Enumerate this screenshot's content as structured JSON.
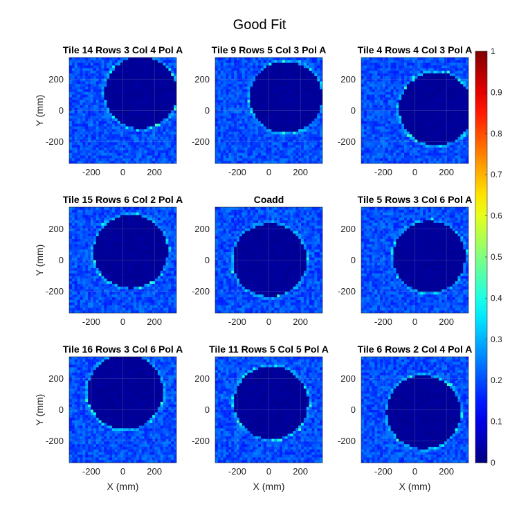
{
  "figure": {
    "title": "Good Fit"
  },
  "chart_data": {
    "type": "heatmap",
    "xlim": [
      -340,
      340
    ],
    "ylim": [
      -340,
      340
    ],
    "xticks": [
      -200,
      0,
      200
    ],
    "yticks": [
      -200,
      0,
      200
    ],
    "xticklabels": [
      "-200",
      "0",
      "200"
    ],
    "yticklabels": [
      "-200",
      "0",
      "200"
    ],
    "xlabel": "X (mm)",
    "ylabel": "Y (mm)",
    "colormap": "jet",
    "background_level": 0.2,
    "colorbar": {
      "min": 0,
      "max": 1,
      "ticks": [
        0,
        0.1,
        0.2,
        0.3,
        0.4,
        0.5,
        0.6,
        0.7,
        0.8,
        0.9,
        1
      ],
      "ticklabels": [
        "0",
        "0.1",
        "0.2",
        "0.3",
        "0.4",
        "0.5",
        "0.6",
        "0.7",
        "0.8",
        "0.9",
        "1"
      ]
    },
    "panels": [
      {
        "title": "Tile 14 Rows 3 Col 4 Pol A",
        "center": [
          115,
          115
        ],
        "radius": 235
      },
      {
        "title": "Tile 9 Rows 5 Col 3 Pol A",
        "center": [
          110,
          85
        ],
        "radius": 235
      },
      {
        "title": "Tile 4 Rows 4 Col 3 Pol A",
        "center": [
          135,
          10
        ],
        "radius": 240
      },
      {
        "title": "Tile 15 Rows 6 Col 2 Pol A",
        "center": [
          50,
          55
        ],
        "radius": 240
      },
      {
        "title": "Coadd",
        "center": [
          5,
          0
        ],
        "radius": 240
      },
      {
        "title": "Tile 5 Rows 3 Col 6 Pol A",
        "center": [
          90,
          20
        ],
        "radius": 235
      },
      {
        "title": "Tile 16 Rows 3 Col 6 Pol A",
        "center": [
          15,
          115
        ],
        "radius": 245
      },
      {
        "title": "Tile 11 Rows 5 Col 5 Pol A",
        "center": [
          15,
          45
        ],
        "radius": 240
      },
      {
        "title": "Tile 6 Rows 2 Col 4 Pol A",
        "center": [
          55,
          -15
        ],
        "radius": 240
      }
    ]
  }
}
